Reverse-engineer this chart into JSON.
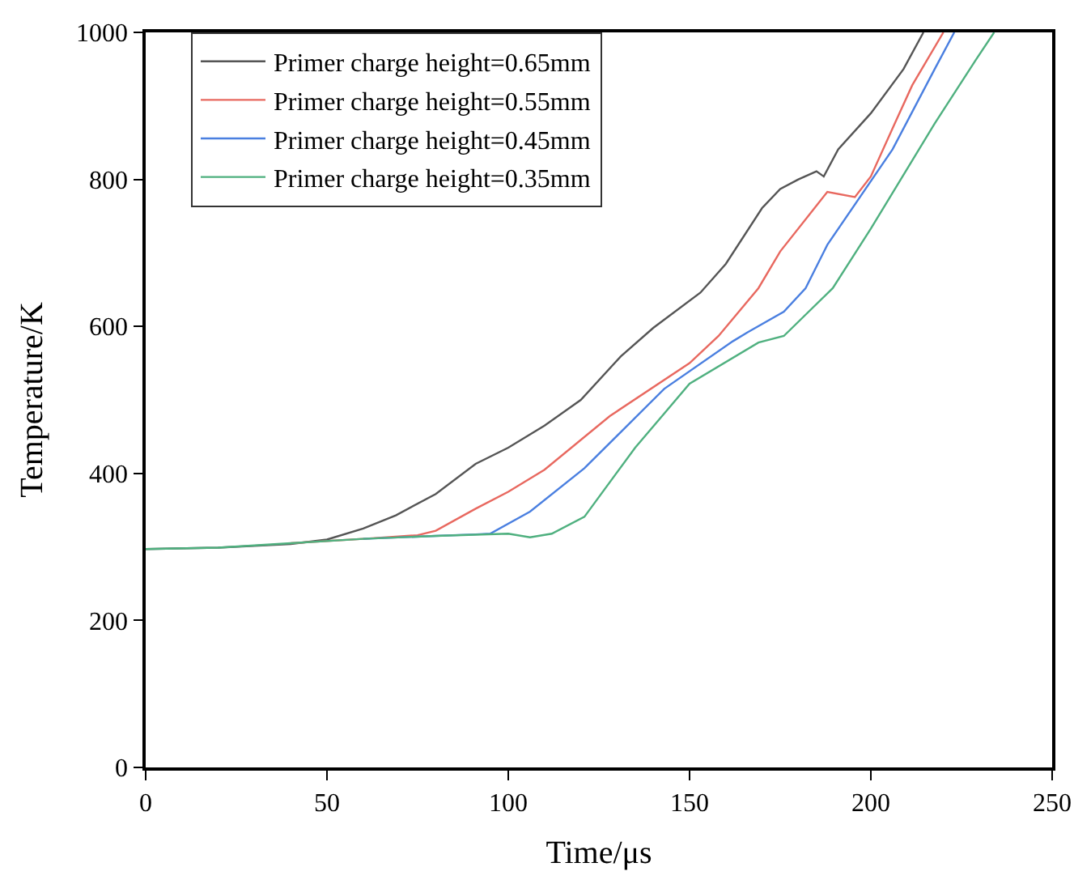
{
  "chart_data": {
    "type": "line",
    "xlabel": "Time/μs",
    "ylabel": "Temperature/K",
    "xlim": [
      0,
      250
    ],
    "xticks": [
      0,
      50,
      100,
      150,
      200,
      250
    ],
    "ylim": [
      0,
      1000
    ],
    "yticks": [
      0,
      200,
      400,
      600,
      800,
      1000
    ],
    "legend": "top left",
    "marker": "none",
    "line_style": "solid",
    "series": [
      {
        "name": "Primer charge height=0.65mm",
        "color": "#555555",
        "x": [
          0,
          20,
          40,
          50,
          60,
          69,
          80,
          91,
          100,
          110,
          120,
          131,
          140,
          153,
          160,
          170,
          175,
          180,
          185,
          187,
          191,
          200,
          209,
          214.5
        ],
        "values": [
          297,
          299,
          304,
          310,
          325,
          343,
          372,
          413,
          435,
          465,
          500,
          559,
          598,
          646,
          685,
          761,
          787,
          800,
          811,
          804,
          841,
          890,
          950,
          1000
        ]
      },
      {
        "name": "Primer charge height=0.55mm",
        "color": "#e8685f",
        "x": [
          40,
          60,
          75,
          80,
          91,
          100,
          110,
          128,
          150,
          158,
          169,
          175,
          188,
          195.6,
          200,
          206.6,
          211.4,
          220
        ],
        "values": [
          305,
          311,
          316,
          322,
          352,
          375,
          405,
          478,
          550,
          587,
          652,
          702,
          783,
          776,
          804,
          876,
          928,
          1000
        ]
      },
      {
        "name": "Primer charge height=0.45mm",
        "color": "#4a7fe0",
        "x": [
          60,
          80,
          91,
          95,
          106,
          121,
          143,
          162,
          166,
          176,
          182,
          188,
          206,
          217.6,
          223
        ],
        "values": [
          311,
          315,
          317,
          318,
          348,
          407,
          515,
          580,
          592,
          620,
          652,
          711,
          841,
          950,
          1000
        ]
      },
      {
        "name": "Primer charge height=0.35mm",
        "color": "#4fb07f",
        "x": [
          0,
          20,
          40,
          60,
          80,
          100,
          106,
          112,
          121,
          135,
          150,
          169,
          176,
          189.5,
          200,
          217.6,
          229,
          234
        ],
        "values": [
          297,
          299,
          305,
          311,
          315,
          318,
          313,
          318,
          341,
          435,
          522,
          578,
          587,
          652,
          733,
          876,
          963,
          1000
        ]
      }
    ]
  }
}
